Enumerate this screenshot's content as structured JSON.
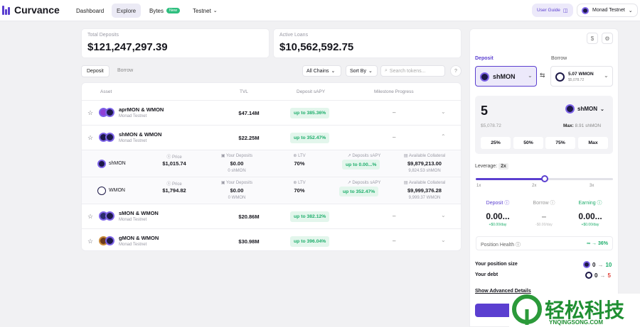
{
  "header": {
    "brand": "Curvance",
    "nav": [
      {
        "label": "Dashboard"
      },
      {
        "label": "Explore"
      },
      {
        "label": "Bytes"
      },
      {
        "label": "Testnet"
      }
    ],
    "bytes_badge": "New",
    "user_guide": "User Guide",
    "wallet": "Monad Testnet"
  },
  "stats": {
    "total_deposits_label": "Total Deposits",
    "total_deposits_value": "$121,247,297.39",
    "active_loans_label": "Active Loans",
    "active_loans_value": "$10,562,592.75"
  },
  "tabs": {
    "deposit": "Deposit",
    "borrow": "Borrow"
  },
  "filters": {
    "chains": "All Chains",
    "sort": "Sort By",
    "search_placeholder": "Search tokens..."
  },
  "table": {
    "headers": {
      "asset": "Asset",
      "tvl": "TVL",
      "apy": "Deposit sAPY",
      "milestone": "Milestone Progress"
    },
    "rows": [
      {
        "name": "aprMON & WMON",
        "chain": "Monad Testnet",
        "tvl": "$47.14M",
        "apy": "up to 385.36%",
        "milestone": "–"
      },
      {
        "name": "shMON & WMON",
        "chain": "Monad Testnet",
        "tvl": "$22.25M",
        "apy": "up to 352.47%",
        "milestone": "–"
      },
      {
        "name": "sMON & WMON",
        "chain": "Monad Testnet",
        "tvl": "$20.86M",
        "apy": "up to 382.12%",
        "milestone": "–"
      },
      {
        "name": "gMON & WMON",
        "chain": "Monad Testnet",
        "tvl": "$30.98M",
        "apy": "up to 396.04%",
        "milestone": "–"
      }
    ],
    "expanded": [
      {
        "token": "shMON",
        "price_label": "Price",
        "price": "$1,015.74",
        "deposits_label": "Your Deposits",
        "deposits": "$0.00",
        "deposits_sub": "0 shMON",
        "ltv_label": "LTV",
        "ltv": "70%",
        "apy_label": "Deposits sAPY",
        "apy": "up to 0.00...%",
        "collat_label": "Available Collateral",
        "collat": "$9,879,213.00",
        "collat_sub": "9,824.53 shMON"
      },
      {
        "token": "WMON",
        "price_label": "Price",
        "price": "$1,794.82",
        "deposits_label": "Your Deposits",
        "deposits": "$0.00",
        "deposits_sub": "0 WMON",
        "ltv_label": "LTV",
        "ltv": "70%",
        "apy_label": "Deposits sAPY",
        "apy": "up to 352.47%",
        "collat_label": "Available Collateral",
        "collat": "$9,999,376.28",
        "collat_sub": "9,999.37 WMON"
      }
    ]
  },
  "panel": {
    "tab_deposit": "Deposit",
    "tab_borrow": "Borrow",
    "deposit_token": "shMON",
    "borrow_token": "5.07 WMON",
    "borrow_sub": "$5,078.72",
    "amount": "5",
    "amount_token": "shMON",
    "amount_usd": "$5,078.72",
    "max_label": "Max:",
    "max_value": "8.91 shMON",
    "pills": [
      "25%",
      "50%",
      "75%",
      "Max"
    ],
    "leverage_label": "Leverage:",
    "leverage_value": "2x",
    "ticks": [
      "1x",
      "2x",
      "3x"
    ],
    "leverage_fraction": 0.5,
    "metrics": [
      {
        "label": "Deposit",
        "value": "0.00...",
        "sub": "+$0.00/day"
      },
      {
        "label": "Borrow",
        "value": "–",
        "sub": "-$0.00/day"
      },
      {
        "label": "Earning",
        "value": "0.00...",
        "sub": "+$0.00/day"
      }
    ],
    "health_label": "Position Health",
    "health_value": "∞ → 36%",
    "position_size_label": "Your position size",
    "position_from": "0",
    "position_to": "10",
    "debt_label": "Your debt",
    "debt_from": "0",
    "debt_to": "5",
    "advanced": "Show Advanced Details"
  },
  "watermark": {
    "text": "轻松科技",
    "url": "YNQINGSONG.COM"
  },
  "colors": {
    "accent": "#5b3fd0",
    "green": "#1fae6c",
    "red": "#e0433a"
  }
}
